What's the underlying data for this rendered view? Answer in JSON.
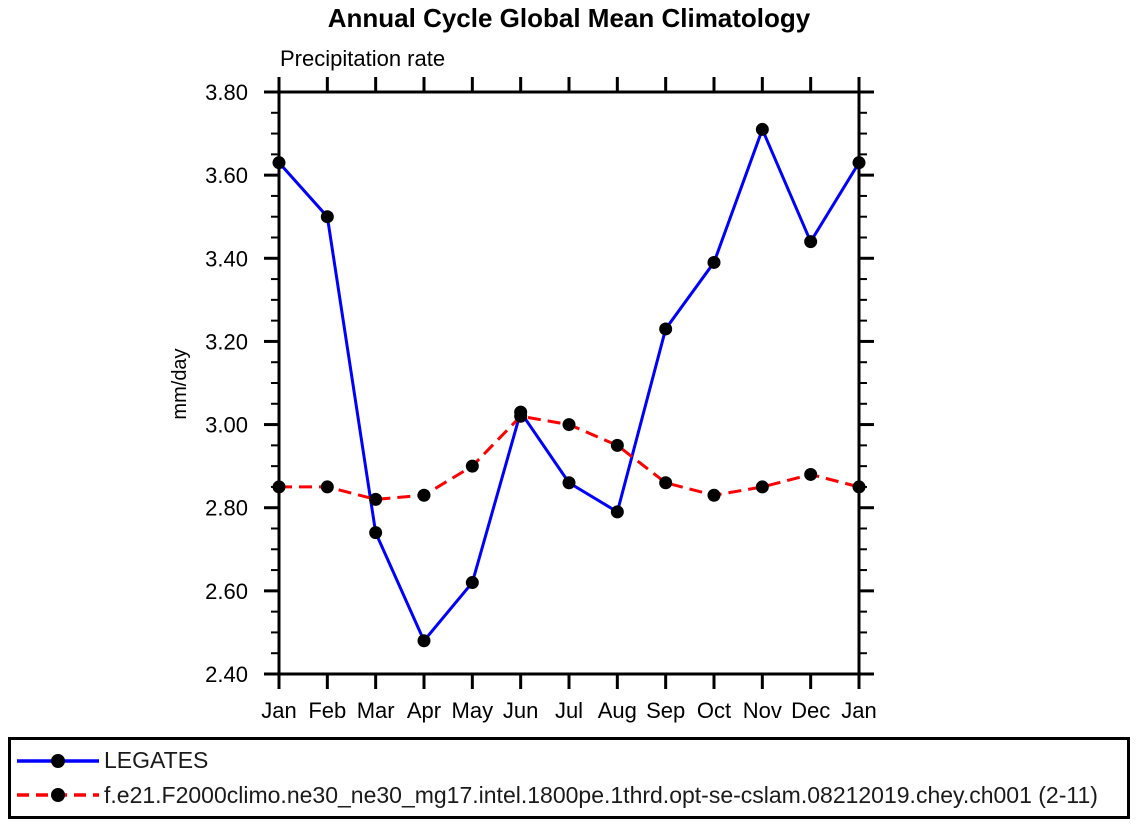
{
  "chart_data": {
    "type": "line",
    "title": "Annual Cycle Global Mean Climatology",
    "subtitle": "Precipitation rate",
    "ylabel": "mm/day",
    "xlabel": "",
    "categories": [
      "Jan",
      "Feb",
      "Mar",
      "Apr",
      "May",
      "Jun",
      "Jul",
      "Aug",
      "Sep",
      "Oct",
      "Nov",
      "Dec",
      "Jan"
    ],
    "ylim": [
      2.4,
      3.8
    ],
    "ytick_step": 0.2,
    "yminor_step": 0.05,
    "grid": false,
    "legend_position": "bottom-box",
    "series": [
      {
        "id": "legates",
        "name": "LEGATES",
        "color": "#0000ff",
        "line_style": "solid",
        "marker": "filled-circle",
        "marker_color": "#000000",
        "values": [
          3.63,
          3.5,
          2.74,
          2.48,
          2.62,
          3.03,
          2.86,
          2.79,
          3.23,
          3.39,
          3.71,
          3.44,
          3.63
        ]
      },
      {
        "id": "model",
        "name": "f.e21.F2000climo.ne30_ne30_mg17.intel.1800pe.1thrd.opt-se-cslam.08212019.chey.ch001 (2-11)",
        "color": "#ff0000",
        "line_style": "dashed",
        "marker": "filled-circle",
        "marker_color": "#000000",
        "values": [
          2.85,
          2.85,
          2.82,
          2.83,
          2.9,
          3.02,
          3.0,
          2.95,
          2.86,
          2.83,
          2.85,
          2.88,
          2.85
        ]
      }
    ]
  }
}
